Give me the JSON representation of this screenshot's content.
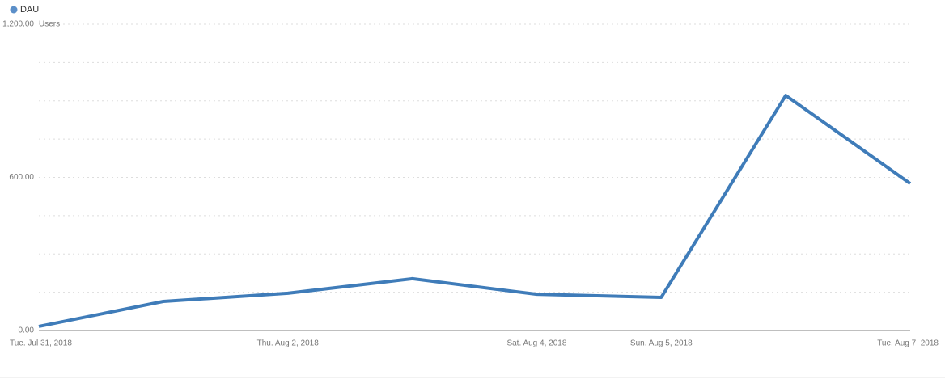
{
  "chart_data": {
    "type": "line",
    "categories": [
      "Tue. Jul 31, 2018",
      null,
      "Thu. Aug 2, 2018",
      null,
      "Sat. Aug 4, 2018",
      "Sun. Aug 5, 2018",
      null,
      "Tue. Aug 7, 2018"
    ],
    "series": [
      {
        "name": "DAU",
        "color": "#3f7cb9",
        "values": [
          16,
          114,
          146,
          203,
          142,
          130,
          921,
          576
        ]
      }
    ],
    "y_label": "Users",
    "ylim": [
      0,
      1200
    ],
    "yticks": [
      {
        "value": 0,
        "label": "0.00"
      },
      {
        "value": 600,
        "label": "600.00"
      },
      {
        "value": 1200,
        "label": "1,200.00"
      }
    ],
    "minor_yticks": [
      150,
      300,
      450,
      750,
      900,
      1050
    ],
    "grid": true
  }
}
